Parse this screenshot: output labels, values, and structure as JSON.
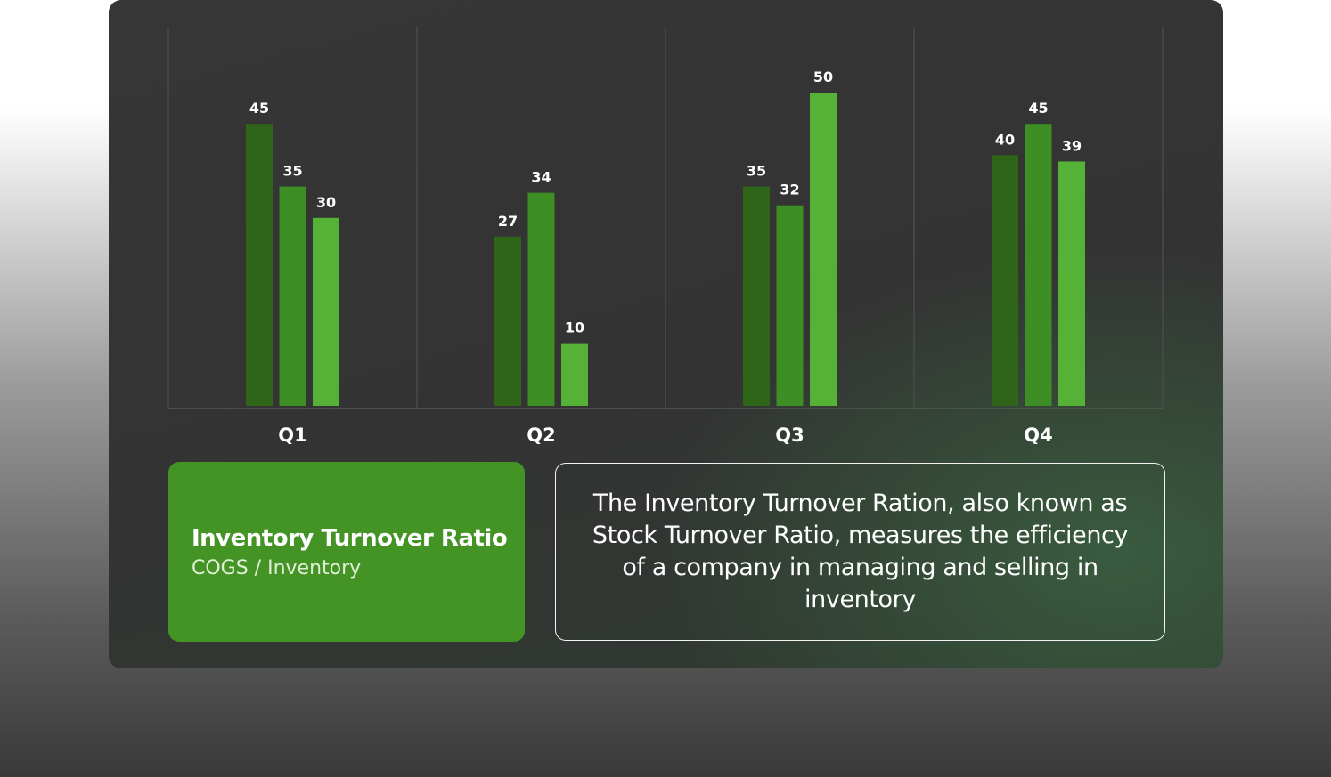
{
  "colors": {
    "series": [
      "#2e6518",
      "#3d8e25",
      "#56b236"
    ],
    "box_green": "#439325"
  },
  "chart_data": {
    "type": "bar",
    "categories": [
      "Q1",
      "Q2",
      "Q3",
      "Q4"
    ],
    "series": [
      {
        "values": [
          45,
          27,
          35,
          40
        ]
      },
      {
        "values": [
          35,
          34,
          32,
          45
        ]
      },
      {
        "values": [
          30,
          10,
          50,
          39
        ]
      }
    ],
    "data_labels": true,
    "ylim": [
      0,
      52
    ],
    "grid": "vertical separators between categories",
    "legend": "none"
  },
  "info_box": {
    "title": "Inventory Turnover Ratio",
    "formula": "COGS / Inventory"
  },
  "description": {
    "text": "The Inventory Turnover Ration, also known as Stock Turnover Ratio, measures the efficiency of a company in managing and selling in inventory"
  }
}
